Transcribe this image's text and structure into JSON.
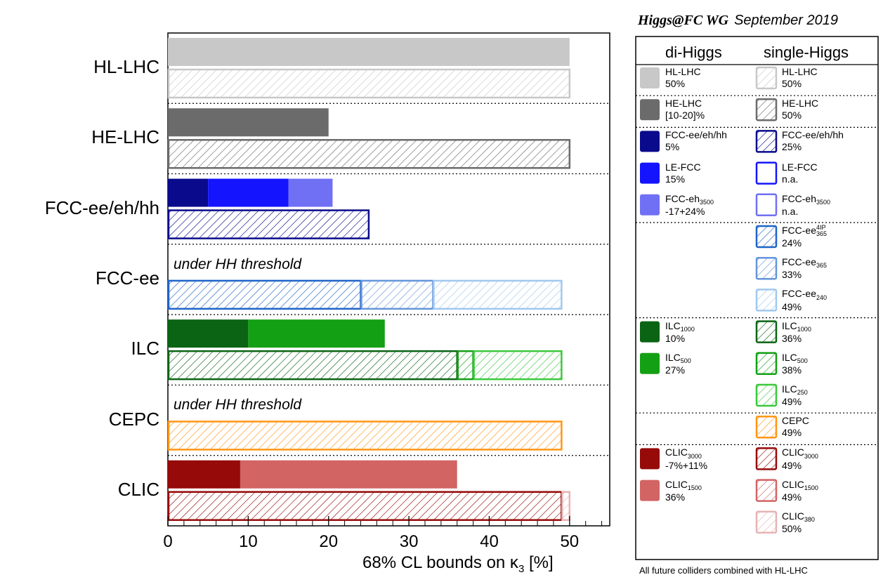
{
  "chart_data": {
    "type": "bar",
    "orientation": "horizontal",
    "title": "Higgs@FC WG",
    "subtitle": "September 2019",
    "xlabel": "68% CL bounds on κ",
    "xlabel_subscript": "3",
    "xlabel_unit": "[%]",
    "xlim": [
      0,
      55
    ],
    "xticks": [
      0,
      10,
      20,
      30,
      40,
      50
    ],
    "grid": false,
    "categories": [
      "HL-LHC",
      "HE-LHC",
      "FCC-ee/eh/hh",
      "FCC-ee",
      "ILC",
      "CEPC",
      "CLIC"
    ],
    "notes": [
      {
        "category": "FCC-ee",
        "text": "under HH threshold"
      },
      {
        "category": "CEPC",
        "text": "under HH threshold"
      }
    ],
    "di_higgs": [
      {
        "category": "HL-LHC",
        "segments": [
          {
            "name": "HL-LHC",
            "value": 50,
            "color": "#c8c8c8"
          }
        ]
      },
      {
        "category": "HE-LHC",
        "segments": [
          {
            "name": "HE-LHC",
            "value": 20,
            "color": "#6b6b6b"
          }
        ]
      },
      {
        "category": "FCC-ee/eh/hh",
        "segments": [
          {
            "name": "FCC-ee/eh/hh",
            "value": 5,
            "color": "#0a0a8c"
          },
          {
            "name": "LE-FCC",
            "value": 15,
            "color": "#1414ff"
          },
          {
            "name": "FCC-eh3500",
            "value": 20.5,
            "color": "#7070f5"
          }
        ]
      },
      {
        "category": "ILC",
        "segments": [
          {
            "name": "ILC1000",
            "value": 10,
            "color": "#0a6414"
          },
          {
            "name": "ILC500",
            "value": 27,
            "color": "#14a014"
          }
        ]
      },
      {
        "category": "CLIC",
        "segments": [
          {
            "name": "CLIC3000",
            "value": 9,
            "color": "#960a0a"
          },
          {
            "name": "CLIC1500",
            "value": 36,
            "color": "#d26464"
          }
        ]
      }
    ],
    "single_higgs": [
      {
        "category": "HL-LHC",
        "segments": [
          {
            "name": "HL-LHC",
            "value": 50,
            "color": "#c8c8c8"
          }
        ]
      },
      {
        "category": "HE-LHC",
        "segments": [
          {
            "name": "HE-LHC",
            "value": 50,
            "color": "#6b6b6b"
          }
        ]
      },
      {
        "category": "FCC-ee/eh/hh",
        "segments": [
          {
            "name": "FCC-ee/eh/hh",
            "value": 25,
            "color": "#0a0a8c"
          }
        ]
      },
      {
        "category": "FCC-ee",
        "segments": [
          {
            "name": "FCC-ee365 4IP",
            "value": 24,
            "color": "#1e64c8"
          },
          {
            "name": "FCC-ee365",
            "value": 33,
            "color": "#6496dc"
          },
          {
            "name": "FCC-ee240",
            "value": 49,
            "color": "#a0c8f0"
          }
        ]
      },
      {
        "category": "ILC",
        "segments": [
          {
            "name": "ILC1000",
            "value": 36,
            "color": "#0a6414"
          },
          {
            "name": "ILC500",
            "value": 38,
            "color": "#14a014"
          },
          {
            "name": "ILC250",
            "value": 49,
            "color": "#3cc83c"
          }
        ]
      },
      {
        "category": "CEPC",
        "segments": [
          {
            "name": "CEPC",
            "value": 49,
            "color": "#ff9614"
          }
        ]
      },
      {
        "category": "CLIC",
        "segments": [
          {
            "name": "CLIC3000",
            "value": 49,
            "color": "#960a0a"
          },
          {
            "name": "CLIC1500",
            "value": 49,
            "color": "#d26464"
          },
          {
            "name": "CLIC380",
            "value": 50,
            "color": "#e6b4b4"
          }
        ]
      }
    ]
  },
  "header": {
    "wg": "Higgs@FC WG",
    "date": "September 2019"
  },
  "legend": {
    "col_di": "di-Higgs",
    "col_single": "single-Higgs",
    "footer": "All future colliders combined with HL-LHC",
    "groups": [
      {
        "di": [
          {
            "name": "HL-LHC",
            "sub": "",
            "sup": "",
            "value": "50%",
            "color": "#c8c8c8"
          }
        ],
        "single": [
          {
            "name": "HL-LHC",
            "sub": "",
            "sup": "",
            "value": "50%",
            "color": "#c8c8c8"
          }
        ]
      },
      {
        "di": [
          {
            "name": "HE-LHC",
            "sub": "",
            "sup": "",
            "value": "[10-20]%",
            "color": "#6b6b6b"
          }
        ],
        "single": [
          {
            "name": "HE-LHC",
            "sub": "",
            "sup": "",
            "value": "50%",
            "color": "#6b6b6b"
          }
        ]
      },
      {
        "di": [
          {
            "name": "FCC-ee/eh/hh",
            "sub": "",
            "sup": "",
            "value": "5%",
            "color": "#0a0a8c"
          },
          {
            "name": "LE-FCC",
            "sub": "",
            "sup": "",
            "value": "15%",
            "color": "#1414ff"
          },
          {
            "name": "FCC-eh",
            "sub": "3500",
            "sup": "",
            "value": "-17+24%",
            "color": "#7070f5"
          }
        ],
        "single": [
          {
            "name": "FCC-ee/eh/hh",
            "sub": "",
            "sup": "",
            "value": "25%",
            "color": "#0a0a8c"
          },
          {
            "name": "LE-FCC",
            "sub": "",
            "sup": "",
            "value": "n.a.",
            "color": "#1414ff"
          },
          {
            "name": "FCC-eh",
            "sub": "3500",
            "sup": "",
            "value": "n.a.",
            "color": "#7070f5"
          }
        ]
      },
      {
        "di": [],
        "single": [
          {
            "name": "FCC-ee",
            "sub": "365",
            "sup": "4IP",
            "value": "24%",
            "color": "#1e64c8"
          },
          {
            "name": "FCC-ee",
            "sub": "365",
            "sup": "",
            "value": "33%",
            "color": "#6496dc"
          },
          {
            "name": "FCC-ee",
            "sub": "240",
            "sup": "",
            "value": "49%",
            "color": "#a0c8f0"
          }
        ]
      },
      {
        "di": [
          {
            "name": "ILC",
            "sub": "1000",
            "sup": "",
            "value": "10%",
            "color": "#0a6414"
          },
          {
            "name": "ILC",
            "sub": "500",
            "sup": "",
            "value": "27%",
            "color": "#14a014"
          }
        ],
        "single": [
          {
            "name": "ILC",
            "sub": "1000",
            "sup": "",
            "value": "36%",
            "color": "#0a6414"
          },
          {
            "name": "ILC",
            "sub": "500",
            "sup": "",
            "value": "38%",
            "color": "#14a014"
          },
          {
            "name": "ILC",
            "sub": "250",
            "sup": "",
            "value": "49%",
            "color": "#3cc83c"
          }
        ]
      },
      {
        "di": [],
        "single": [
          {
            "name": "CEPC",
            "sub": "",
            "sup": "",
            "value": "49%",
            "color": "#ff9614"
          }
        ]
      },
      {
        "di": [
          {
            "name": "CLIC",
            "sub": "3000",
            "sup": "",
            "value": "-7%+11%",
            "color": "#960a0a"
          },
          {
            "name": "CLIC",
            "sub": "1500",
            "sup": "",
            "value": "36%",
            "color": "#d26464"
          }
        ],
        "single": [
          {
            "name": "CLIC",
            "sub": "3000",
            "sup": "",
            "value": "49%",
            "color": "#960a0a"
          },
          {
            "name": "CLIC",
            "sub": "1500",
            "sup": "",
            "value": "49%",
            "color": "#d26464"
          },
          {
            "name": "CLIC",
            "sub": "380",
            "sup": "",
            "value": "50%",
            "color": "#e6b4b4"
          }
        ]
      }
    ]
  }
}
